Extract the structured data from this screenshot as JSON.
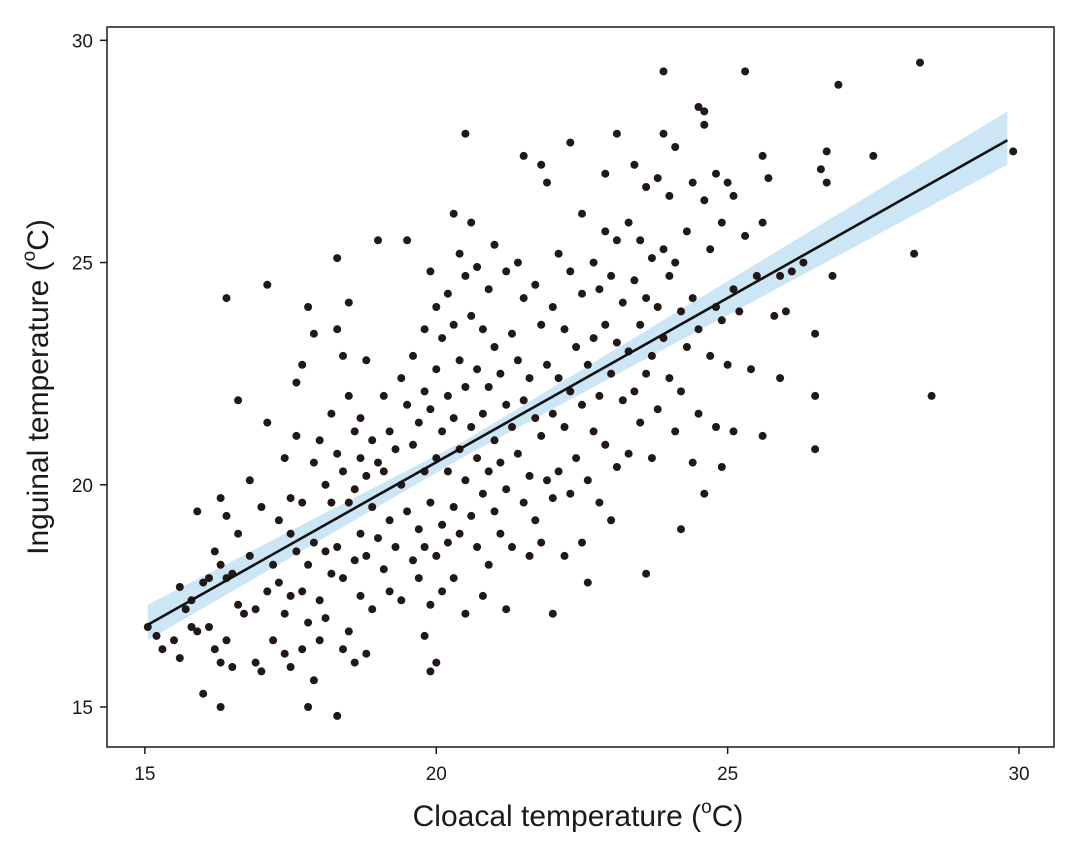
{
  "chart_data": {
    "type": "scatter",
    "title": "",
    "xlabel": "Cloacal temperature (",
    "ylabel": "Inguinal temperature (",
    "unit_superscript": "o",
    "unit_letter": "C)",
    "xlim": [
      14.35,
      30.6
    ],
    "ylim": [
      14.1,
      30.3
    ],
    "xticks": [
      15,
      20,
      25,
      30
    ],
    "yticks": [
      15,
      20,
      25,
      30
    ],
    "xtick_labels": [
      "15",
      "20",
      "25",
      "30"
    ],
    "ytick_labels": [
      "15",
      "20",
      "25",
      "30"
    ],
    "grid": false,
    "legend": "none",
    "colors": {
      "points": "#231816",
      "fit_line": "#111111",
      "ci_band": "#cde6f5"
    },
    "fit_line": {
      "x": [
        15.05,
        29.8
      ],
      "y": [
        16.85,
        27.75
      ]
    },
    "confidence_band": {
      "x": [
        15.05,
        20.5,
        29.8
      ],
      "lower": [
        16.5,
        20.65,
        27.2
      ],
      "upper": [
        17.3,
        21.0,
        28.4
      ]
    },
    "points": [
      [
        15.05,
        16.8
      ],
      [
        15.2,
        16.6
      ],
      [
        15.3,
        16.3
      ],
      [
        15.5,
        16.5
      ],
      [
        15.6,
        17.7
      ],
      [
        15.6,
        16.1
      ],
      [
        15.7,
        17.2
      ],
      [
        15.8,
        17.4
      ],
      [
        15.8,
        16.8
      ],
      [
        15.9,
        19.4
      ],
      [
        15.9,
        16.7
      ],
      [
        16.0,
        17.8
      ],
      [
        16.0,
        15.3
      ],
      [
        16.1,
        17.9
      ],
      [
        16.1,
        16.8
      ],
      [
        16.2,
        18.5
      ],
      [
        16.2,
        16.3
      ],
      [
        16.3,
        19.7
      ],
      [
        16.3,
        18.2
      ],
      [
        16.3,
        16.0
      ],
      [
        16.3,
        15.0
      ],
      [
        16.4,
        24.2
      ],
      [
        16.4,
        19.3
      ],
      [
        16.4,
        17.9
      ],
      [
        16.4,
        16.5
      ],
      [
        16.5,
        18.0
      ],
      [
        16.5,
        15.9
      ],
      [
        16.6,
        21.9
      ],
      [
        16.6,
        18.9
      ],
      [
        16.6,
        17.3
      ],
      [
        16.7,
        17.1
      ],
      [
        16.8,
        20.1
      ],
      [
        16.8,
        18.4
      ],
      [
        16.9,
        17.2
      ],
      [
        16.9,
        16.0
      ],
      [
        17.0,
        15.8
      ],
      [
        17.0,
        19.5
      ],
      [
        17.1,
        24.5
      ],
      [
        17.1,
        21.4
      ],
      [
        17.1,
        17.6
      ],
      [
        17.2,
        18.2
      ],
      [
        17.2,
        16.5
      ],
      [
        17.3,
        19.2
      ],
      [
        17.3,
        17.8
      ],
      [
        17.4,
        20.6
      ],
      [
        17.4,
        17.1
      ],
      [
        17.4,
        16.2
      ],
      [
        17.5,
        19.7
      ],
      [
        17.5,
        18.9
      ],
      [
        17.5,
        17.5
      ],
      [
        17.5,
        15.9
      ],
      [
        17.6,
        22.3
      ],
      [
        17.6,
        21.1
      ],
      [
        17.6,
        18.5
      ],
      [
        17.7,
        22.7
      ],
      [
        17.7,
        19.6
      ],
      [
        17.7,
        17.6
      ],
      [
        17.7,
        16.3
      ],
      [
        17.8,
        24.0
      ],
      [
        17.8,
        18.2
      ],
      [
        17.8,
        15.0
      ],
      [
        17.8,
        16.9
      ],
      [
        17.9,
        23.4
      ],
      [
        17.9,
        20.5
      ],
      [
        17.9,
        18.7
      ],
      [
        17.9,
        15.6
      ],
      [
        18.0,
        21.0
      ],
      [
        18.0,
        17.4
      ],
      [
        18.0,
        16.5
      ],
      [
        18.1,
        20.0
      ],
      [
        18.1,
        18.5
      ],
      [
        18.1,
        17.0
      ],
      [
        18.2,
        21.6
      ],
      [
        18.2,
        19.6
      ],
      [
        18.2,
        18.0
      ],
      [
        18.3,
        25.1
      ],
      [
        18.3,
        23.5
      ],
      [
        18.3,
        20.7
      ],
      [
        18.3,
        18.6
      ],
      [
        18.3,
        14.8
      ],
      [
        18.4,
        22.9
      ],
      [
        18.4,
        20.3
      ],
      [
        18.4,
        17.9
      ],
      [
        18.4,
        16.3
      ],
      [
        18.5,
        24.1
      ],
      [
        18.5,
        22.0
      ],
      [
        18.5,
        19.6
      ],
      [
        18.5,
        16.7
      ],
      [
        18.6,
        21.2
      ],
      [
        18.6,
        19.9
      ],
      [
        18.6,
        18.3
      ],
      [
        18.6,
        16.0
      ],
      [
        18.7,
        21.5
      ],
      [
        18.7,
        20.6
      ],
      [
        18.7,
        18.9
      ],
      [
        18.7,
        17.5
      ],
      [
        18.8,
        22.8
      ],
      [
        18.8,
        20.2
      ],
      [
        18.8,
        18.4
      ],
      [
        18.8,
        16.2
      ],
      [
        18.9,
        21.0
      ],
      [
        18.9,
        19.5
      ],
      [
        18.9,
        17.2
      ],
      [
        19.0,
        25.5
      ],
      [
        19.0,
        20.5
      ],
      [
        19.0,
        18.8
      ],
      [
        19.1,
        22.0
      ],
      [
        19.1,
        20.3
      ],
      [
        19.1,
        18.1
      ],
      [
        19.2,
        21.2
      ],
      [
        19.2,
        19.2
      ],
      [
        19.2,
        17.6
      ],
      [
        19.3,
        20.8
      ],
      [
        19.3,
        18.6
      ],
      [
        19.4,
        22.4
      ],
      [
        19.4,
        20.0
      ],
      [
        19.4,
        17.4
      ],
      [
        19.5,
        25.5
      ],
      [
        19.5,
        21.8
      ],
      [
        19.5,
        19.4
      ],
      [
        19.6,
        22.9
      ],
      [
        19.6,
        20.9
      ],
      [
        19.6,
        18.3
      ],
      [
        19.7,
        21.4
      ],
      [
        19.7,
        19.0
      ],
      [
        19.7,
        17.9
      ],
      [
        19.8,
        23.5
      ],
      [
        19.8,
        22.1
      ],
      [
        19.8,
        20.3
      ],
      [
        19.8,
        18.6
      ],
      [
        19.8,
        16.6
      ],
      [
        19.9,
        24.8
      ],
      [
        19.9,
        21.7
      ],
      [
        19.9,
        19.6
      ],
      [
        19.9,
        17.3
      ],
      [
        19.9,
        15.8
      ],
      [
        20.0,
        24.0
      ],
      [
        20.0,
        22.6
      ],
      [
        20.0,
        20.6
      ],
      [
        20.0,
        18.4
      ],
      [
        20.0,
        16.0
      ],
      [
        20.1,
        23.3
      ],
      [
        20.1,
        21.2
      ],
      [
        20.1,
        19.1
      ],
      [
        20.1,
        17.6
      ],
      [
        20.2,
        24.3
      ],
      [
        20.2,
        22.0
      ],
      [
        20.2,
        20.3
      ],
      [
        20.2,
        18.7
      ],
      [
        20.3,
        26.1
      ],
      [
        20.3,
        23.6
      ],
      [
        20.3,
        21.5
      ],
      [
        20.3,
        19.5
      ],
      [
        20.3,
        17.9
      ],
      [
        20.4,
        25.2
      ],
      [
        20.4,
        22.8
      ],
      [
        20.4,
        20.8
      ],
      [
        20.4,
        18.9
      ],
      [
        20.5,
        27.9
      ],
      [
        20.5,
        24.7
      ],
      [
        20.5,
        22.2
      ],
      [
        20.5,
        20.1
      ],
      [
        20.5,
        17.1
      ],
      [
        20.6,
        25.9
      ],
      [
        20.6,
        23.8
      ],
      [
        20.6,
        21.3
      ],
      [
        20.6,
        19.3
      ],
      [
        20.7,
        24.9
      ],
      [
        20.7,
        22.6
      ],
      [
        20.7,
        20.6
      ],
      [
        20.7,
        18.6
      ],
      [
        20.8,
        23.5
      ],
      [
        20.8,
        21.6
      ],
      [
        20.8,
        19.8
      ],
      [
        20.8,
        17.5
      ],
      [
        20.9,
        24.4
      ],
      [
        20.9,
        22.2
      ],
      [
        20.9,
        20.3
      ],
      [
        20.9,
        18.2
      ],
      [
        21.0,
        25.4
      ],
      [
        21.0,
        23.1
      ],
      [
        21.0,
        21.0
      ],
      [
        21.0,
        19.4
      ],
      [
        21.1,
        22.5
      ],
      [
        21.1,
        20.5
      ],
      [
        21.1,
        18.9
      ],
      [
        21.2,
        24.8
      ],
      [
        21.2,
        21.8
      ],
      [
        21.2,
        19.9
      ],
      [
        21.2,
        17.2
      ],
      [
        21.3,
        23.4
      ],
      [
        21.3,
        21.3
      ],
      [
        21.3,
        18.6
      ],
      [
        21.4,
        25.0
      ],
      [
        21.4,
        22.8
      ],
      [
        21.4,
        20.7
      ],
      [
        21.5,
        27.4
      ],
      [
        21.5,
        24.2
      ],
      [
        21.5,
        21.9
      ],
      [
        21.5,
        19.6
      ],
      [
        21.6,
        22.4
      ],
      [
        21.6,
        20.2
      ],
      [
        21.6,
        18.4
      ],
      [
        21.7,
        24.5
      ],
      [
        21.7,
        21.5
      ],
      [
        21.7,
        19.2
      ],
      [
        21.8,
        27.2
      ],
      [
        21.8,
        23.6
      ],
      [
        21.8,
        21.1
      ],
      [
        21.8,
        18.7
      ],
      [
        21.9,
        26.8
      ],
      [
        21.9,
        22.7
      ],
      [
        21.9,
        20.1
      ],
      [
        22.0,
        24.0
      ],
      [
        22.0,
        21.6
      ],
      [
        22.0,
        19.7
      ],
      [
        22.0,
        17.1
      ],
      [
        22.1,
        25.2
      ],
      [
        22.1,
        22.4
      ],
      [
        22.1,
        20.3
      ],
      [
        22.2,
        23.5
      ],
      [
        22.2,
        21.3
      ],
      [
        22.2,
        18.4
      ],
      [
        22.3,
        27.7
      ],
      [
        22.3,
        24.8
      ],
      [
        22.3,
        22.1
      ],
      [
        22.3,
        19.8
      ],
      [
        22.4,
        23.1
      ],
      [
        22.4,
        20.6
      ],
      [
        22.5,
        26.1
      ],
      [
        22.5,
        24.3
      ],
      [
        22.5,
        21.8
      ],
      [
        22.5,
        18.7
      ],
      [
        22.6,
        22.7
      ],
      [
        22.6,
        20.1
      ],
      [
        22.6,
        17.8
      ],
      [
        22.7,
        25.0
      ],
      [
        22.7,
        23.3
      ],
      [
        22.7,
        21.2
      ],
      [
        22.8,
        24.4
      ],
      [
        22.8,
        22.0
      ],
      [
        22.8,
        19.6
      ],
      [
        22.9,
        27.0
      ],
      [
        22.9,
        25.7
      ],
      [
        22.9,
        23.6
      ],
      [
        22.9,
        20.9
      ],
      [
        23.0,
        24.7
      ],
      [
        23.0,
        22.5
      ],
      [
        23.0,
        19.2
      ],
      [
        23.1,
        27.9
      ],
      [
        23.1,
        25.5
      ],
      [
        23.1,
        23.2
      ],
      [
        23.1,
        20.4
      ],
      [
        23.2,
        24.1
      ],
      [
        23.2,
        21.9
      ],
      [
        23.3,
        25.9
      ],
      [
        23.3,
        23.0
      ],
      [
        23.3,
        20.7
      ],
      [
        23.4,
        27.2
      ],
      [
        23.4,
        24.6
      ],
      [
        23.4,
        22.1
      ],
      [
        23.5,
        25.5
      ],
      [
        23.5,
        23.6
      ],
      [
        23.5,
        21.4
      ],
      [
        23.6,
        26.7
      ],
      [
        23.6,
        24.2
      ],
      [
        23.6,
        22.5
      ],
      [
        23.6,
        18.0
      ],
      [
        23.7,
        25.1
      ],
      [
        23.7,
        22.9
      ],
      [
        23.7,
        20.6
      ],
      [
        23.8,
        26.9
      ],
      [
        23.8,
        24.0
      ],
      [
        23.8,
        21.7
      ],
      [
        23.9,
        29.3
      ],
      [
        23.9,
        27.9
      ],
      [
        23.9,
        25.3
      ],
      [
        23.9,
        23.3
      ],
      [
        24.0,
        26.5
      ],
      [
        24.0,
        24.7
      ],
      [
        24.0,
        22.4
      ],
      [
        24.1,
        27.6
      ],
      [
        24.1,
        25.0
      ],
      [
        24.1,
        21.2
      ],
      [
        24.2,
        23.9
      ],
      [
        24.2,
        22.1
      ],
      [
        24.2,
        19.0
      ],
      [
        24.3,
        25.7
      ],
      [
        24.3,
        23.1
      ],
      [
        24.4,
        26.8
      ],
      [
        24.4,
        24.2
      ],
      [
        24.4,
        20.5
      ],
      [
        24.5,
        28.5
      ],
      [
        24.5,
        23.5
      ],
      [
        24.5,
        21.6
      ],
      [
        24.6,
        28.4
      ],
      [
        24.6,
        28.1
      ],
      [
        24.6,
        26.4
      ],
      [
        24.6,
        19.8
      ],
      [
        24.7,
        25.3
      ],
      [
        24.7,
        22.9
      ],
      [
        24.8,
        27.0
      ],
      [
        24.8,
        24.0
      ],
      [
        24.8,
        21.3
      ],
      [
        24.9,
        25.9
      ],
      [
        24.9,
        23.7
      ],
      [
        24.9,
        20.4
      ],
      [
        25.0,
        26.8
      ],
      [
        25.0,
        22.7
      ],
      [
        25.1,
        26.5
      ],
      [
        25.1,
        24.4
      ],
      [
        25.1,
        21.2
      ],
      [
        25.2,
        23.9
      ],
      [
        25.3,
        29.3
      ],
      [
        25.3,
        25.6
      ],
      [
        25.4,
        22.6
      ],
      [
        25.5,
        24.7
      ],
      [
        25.6,
        27.4
      ],
      [
        25.6,
        25.9
      ],
      [
        25.6,
        21.1
      ],
      [
        25.7,
        26.9
      ],
      [
        25.8,
        23.8
      ],
      [
        25.9,
        24.7
      ],
      [
        25.9,
        22.4
      ],
      [
        26.0,
        23.9
      ],
      [
        26.1,
        24.8
      ],
      [
        26.3,
        25.0
      ],
      [
        26.5,
        23.4
      ],
      [
        26.5,
        22.0
      ],
      [
        26.5,
        20.8
      ],
      [
        26.6,
        27.1
      ],
      [
        26.7,
        27.5
      ],
      [
        26.7,
        26.8
      ],
      [
        26.8,
        24.7
      ],
      [
        26.9,
        29.0
      ],
      [
        27.5,
        27.4
      ],
      [
        28.2,
        25.2
      ],
      [
        28.3,
        29.5
      ],
      [
        28.5,
        22.0
      ],
      [
        29.9,
        27.5
      ]
    ]
  }
}
